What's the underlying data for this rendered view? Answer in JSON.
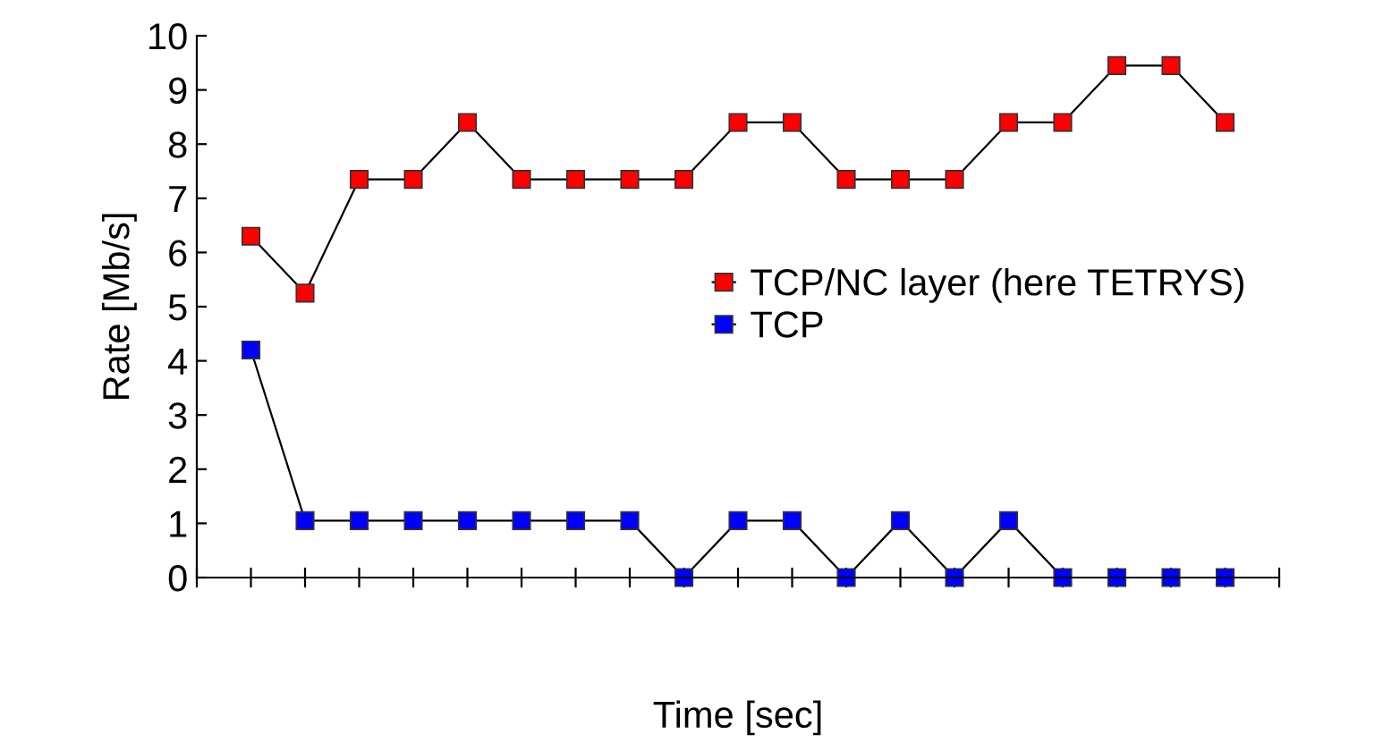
{
  "chart_data": {
    "type": "line",
    "xlabel": "Time [sec]",
    "ylabel": "Rate [Mb/s]",
    "categories": [
      null,
      null,
      null,
      null,
      null,
      null,
      null,
      null,
      null,
      null,
      null,
      null,
      null,
      null,
      null,
      null,
      null,
      null,
      null
    ],
    "series": [
      {
        "name": "TCP/NC layer (here TETRYS)",
        "color": "#ff0000",
        "values": [
          6.3,
          5.25,
          7.35,
          7.35,
          8.4,
          7.35,
          7.35,
          7.35,
          7.35,
          8.4,
          8.4,
          7.35,
          7.35,
          7.35,
          8.4,
          8.4,
          9.45,
          9.45,
          8.4
        ]
      },
      {
        "name": "TCP",
        "color": "#0000ff",
        "values": [
          4.2,
          1.05,
          1.05,
          1.05,
          1.05,
          1.05,
          1.05,
          1.05,
          0,
          1.05,
          1.05,
          0,
          1.05,
          0,
          1.05,
          0,
          0,
          0,
          0
        ]
      }
    ],
    "ylim": [
      0,
      10
    ],
    "yticks": [
      0,
      1,
      2,
      3,
      4,
      5,
      6,
      7,
      8,
      9,
      10
    ],
    "grid": false,
    "legend": "right",
    "marker": "square",
    "line_style": "solid"
  }
}
